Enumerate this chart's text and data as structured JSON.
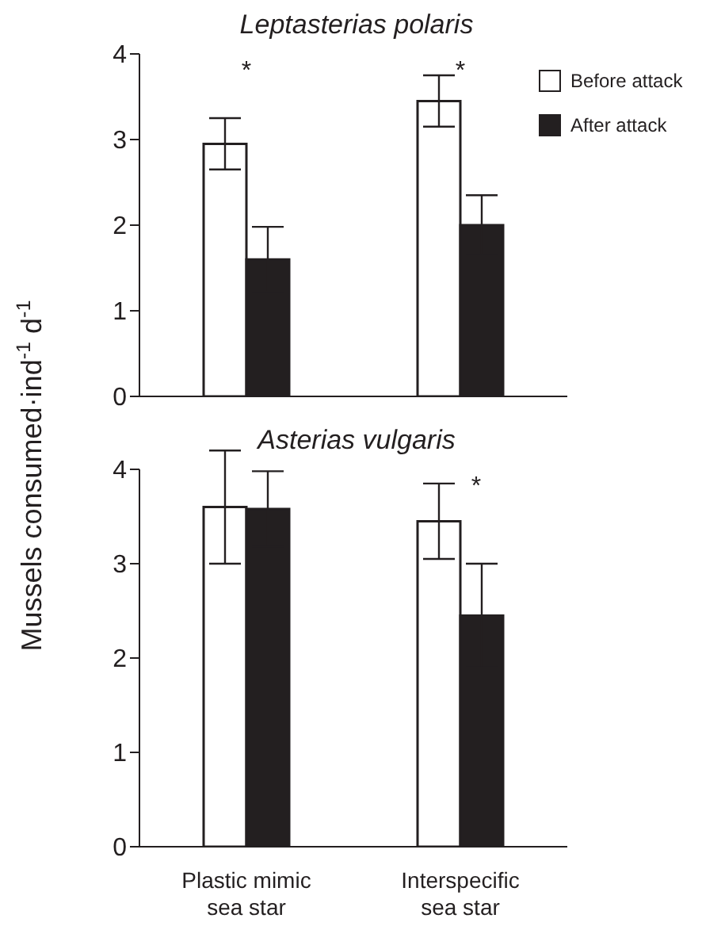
{
  "chart_data": [
    {
      "type": "bar",
      "title": "Leptasterias polaris",
      "ylabel": "Mussels consumed·ind$^{-1}$ d$^{-1}$",
      "categories": [
        null,
        null
      ],
      "series": [
        {
          "name": "Before attack",
          "color": "#ffffff",
          "values": [
            2.95,
            3.45
          ],
          "errors": [
            0.3,
            0.3
          ]
        },
        {
          "name": "After attack",
          "color": "#231f20",
          "values": [
            1.6,
            2.0
          ],
          "errors": [
            0.38,
            0.35
          ]
        }
      ],
      "ylim": [
        0,
        4
      ],
      "yticks": [
        0,
        1,
        2,
        3,
        4
      ],
      "tick_labels": "y",
      "legend": "top right",
      "grid": false,
      "annotations": [
        "*",
        "*"
      ]
    },
    {
      "type": "bar",
      "title": "Asterias vulgaris",
      "categories": [
        "Plastic mimic sea star",
        "Interspecific sea star"
      ],
      "series": [
        {
          "color": "#ffffff",
          "values": [
            3.6,
            3.45
          ],
          "errors": [
            0.6,
            0.4
          ]
        },
        {
          "color": "#231f20",
          "values": [
            3.58,
            2.45
          ],
          "errors": [
            0.4,
            0.55
          ]
        }
      ],
      "ylim": [
        0,
        4
      ],
      "yticks": [
        0,
        1,
        2,
        3,
        4
      ],
      "legend": false,
      "grid": false,
      "annotations": [
        "*"
      ]
    }
  ]
}
